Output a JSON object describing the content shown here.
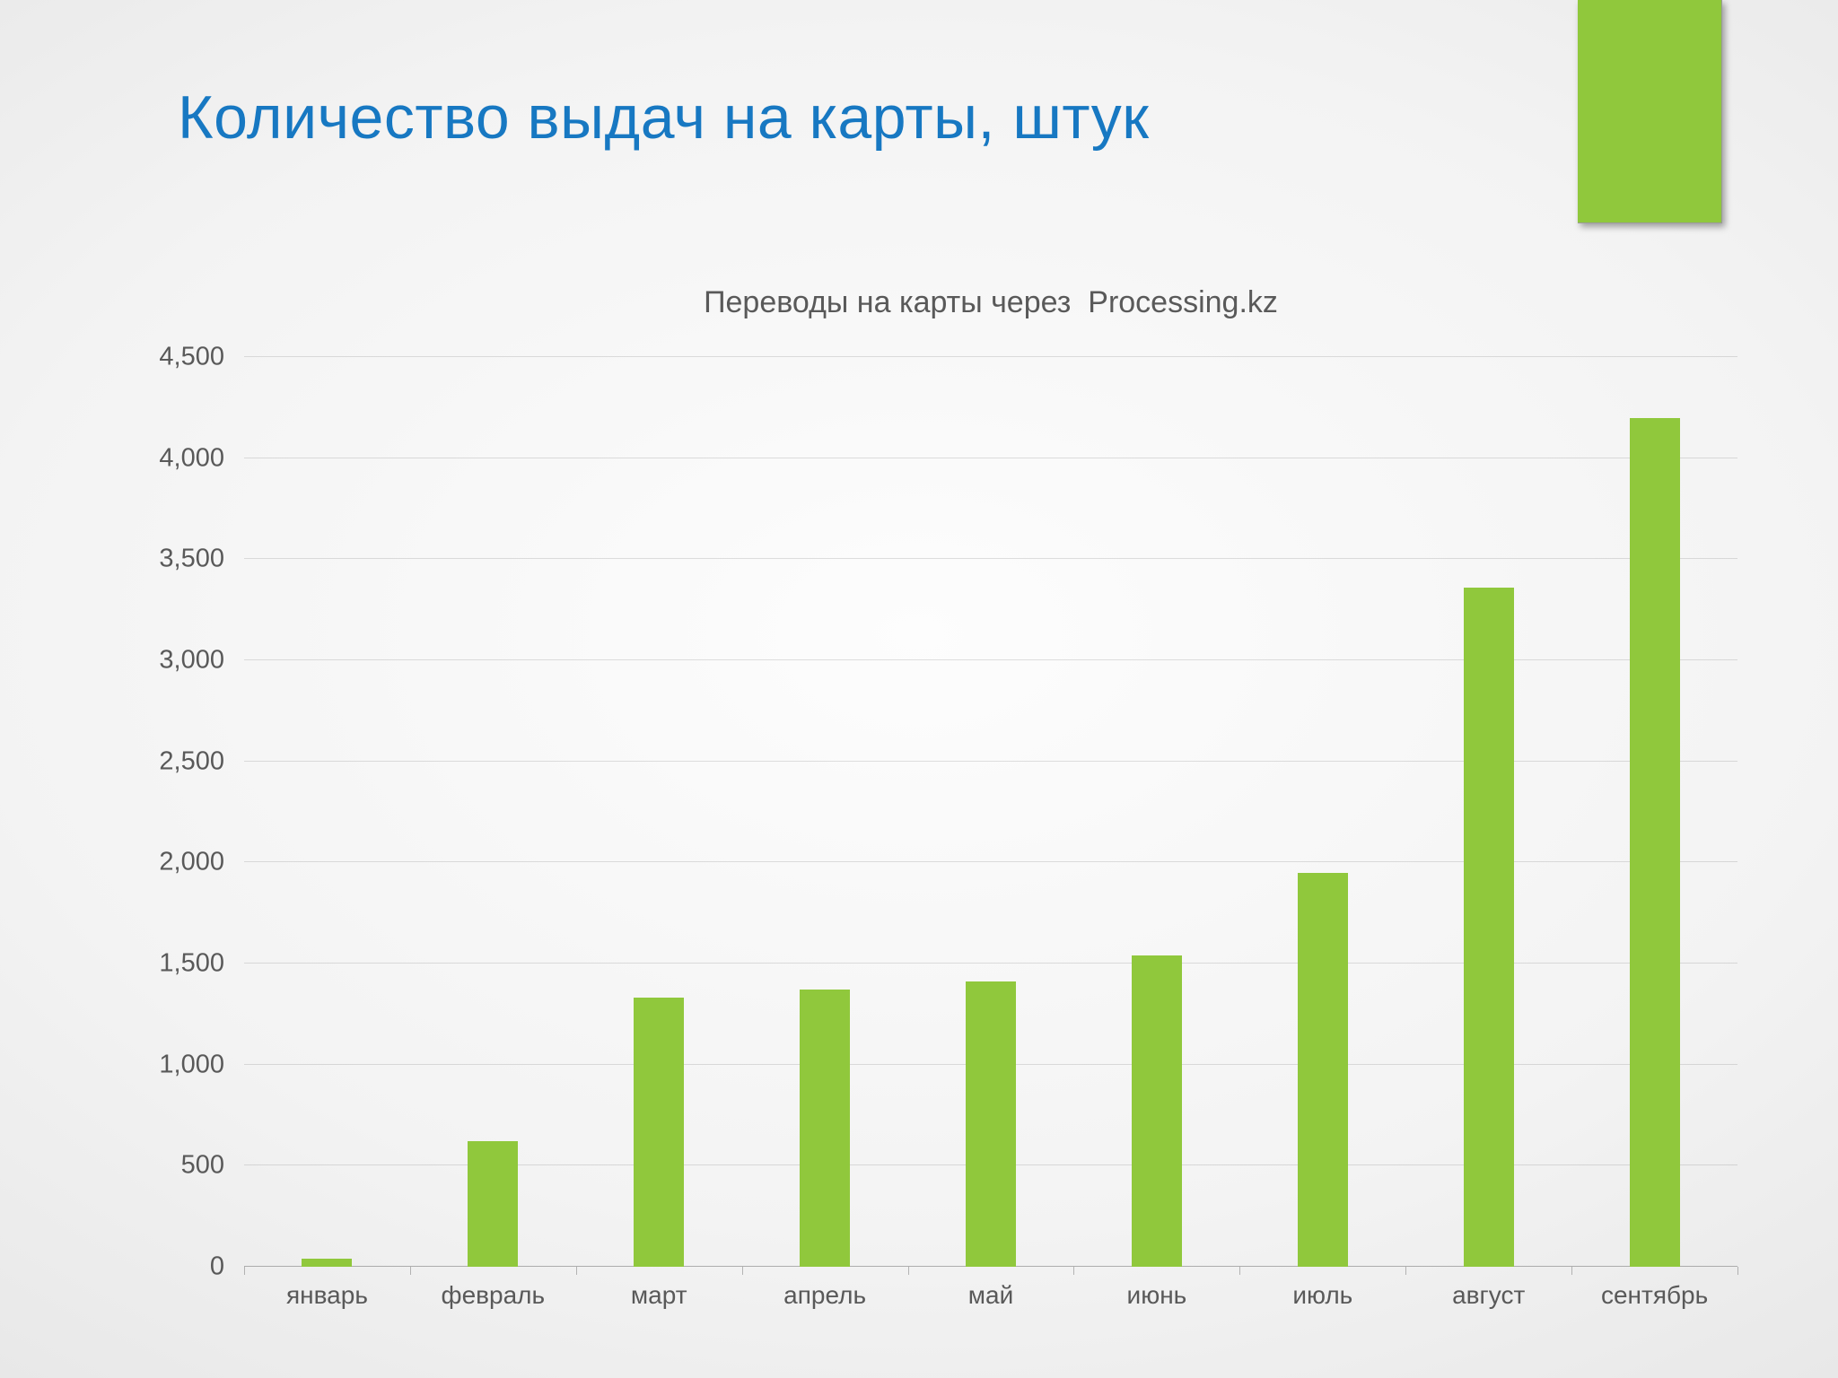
{
  "slide": {
    "title": "Количество выдач на карты, штук",
    "colors": {
      "title_blue": "#1778C2",
      "accent_green": "#90C83C",
      "axis_text": "#595959"
    }
  },
  "chart_data": {
    "type": "bar",
    "title": "Переводы на карты через  Processing.kz",
    "categories": [
      "январь",
      "февраль",
      "март",
      "апрель",
      "май",
      "июнь",
      "июль",
      "август",
      "сентябрь"
    ],
    "values": [
      40,
      620,
      1330,
      1370,
      1410,
      1540,
      1950,
      3360,
      4200
    ],
    "ylim": [
      0,
      4500
    ],
    "ytick_step": 500,
    "ytick_labels": [
      "0",
      "500",
      "1,000",
      "1,500",
      "2,000",
      "2,500",
      "3,000",
      "3,500",
      "4,000",
      "4,500"
    ],
    "grid": true,
    "legend": "none",
    "bar_color": "#90C83C"
  }
}
